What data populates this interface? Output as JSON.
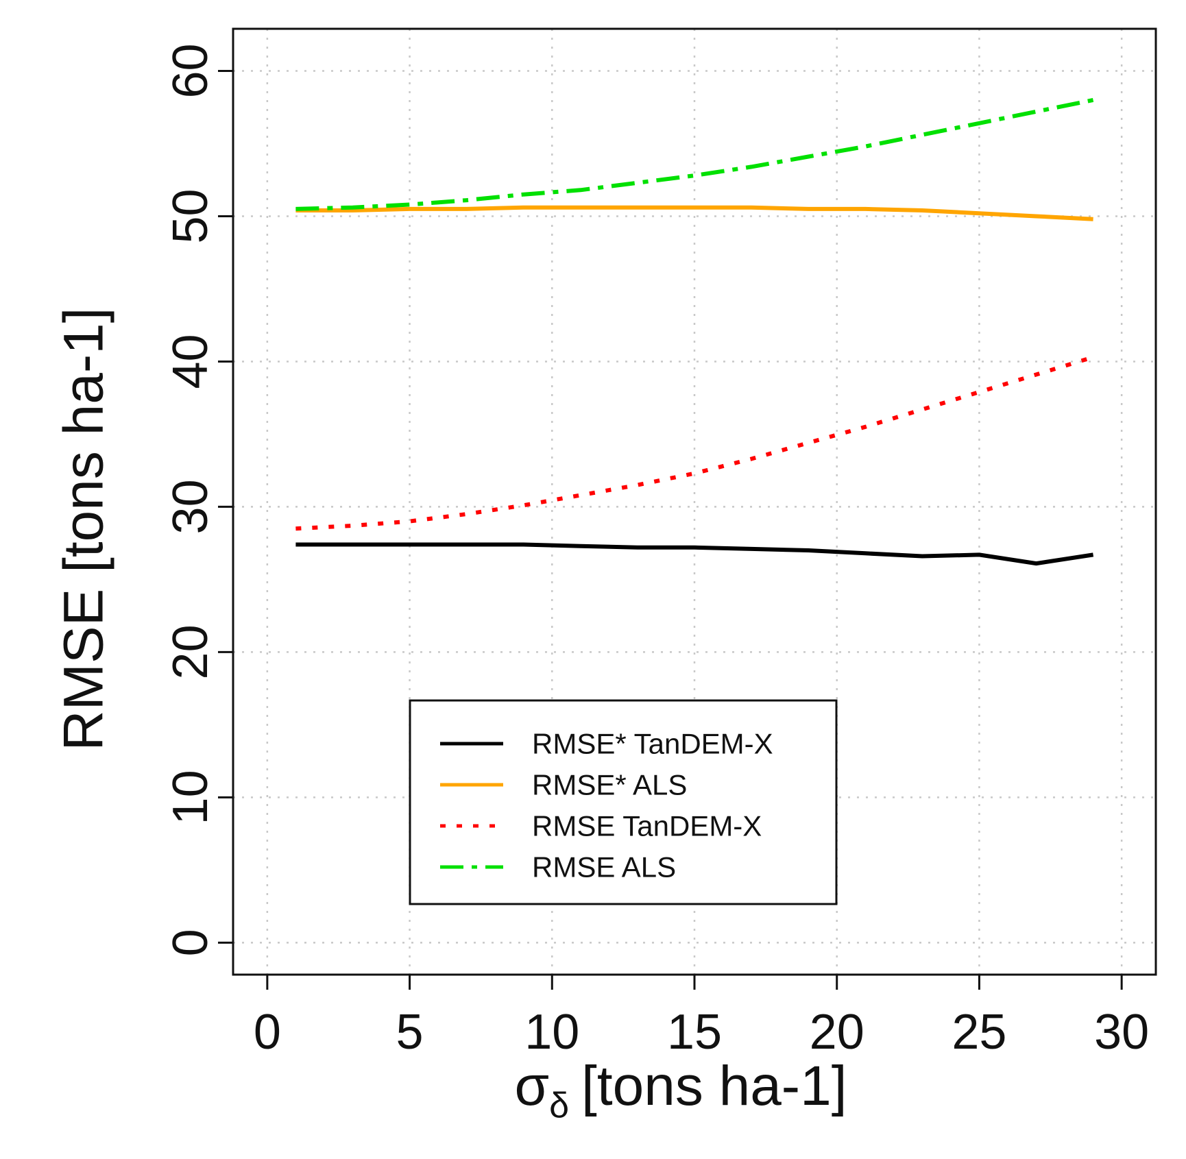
{
  "chart_data": {
    "type": "line",
    "xlabel_symbol": "σ",
    "xlabel_subscript": "δ",
    "xlabel_unit": "[tons ha-1]",
    "ylabel": "RMSE [tons ha-1]",
    "xlim": [
      -1.2,
      31.2
    ],
    "ylim": [
      -2.2,
      62.9
    ],
    "xticks": [
      0,
      5,
      10,
      15,
      20,
      25,
      30
    ],
    "yticks": [
      0,
      10,
      20,
      30,
      40,
      50,
      60
    ],
    "grid": true,
    "legend_position": "bottom-center",
    "series": [
      {
        "name": "RMSE* TanDEM-X",
        "color": "#000000",
        "dash": "solid",
        "x": [
          1,
          3,
          5,
          7,
          9,
          11,
          13,
          15,
          17,
          19,
          21,
          23,
          25,
          27,
          29
        ],
        "y": [
          27.4,
          27.4,
          27.4,
          27.4,
          27.4,
          27.3,
          27.2,
          27.2,
          27.1,
          27.0,
          26.8,
          26.6,
          26.7,
          26.1,
          26.7
        ]
      },
      {
        "name": "RMSE* ALS",
        "color": "#ffa500",
        "dash": "solid",
        "x": [
          1,
          3,
          5,
          7,
          9,
          11,
          13,
          15,
          17,
          19,
          21,
          23,
          25,
          27,
          29
        ],
        "y": [
          50.4,
          50.4,
          50.5,
          50.5,
          50.6,
          50.6,
          50.6,
          50.6,
          50.6,
          50.5,
          50.5,
          50.4,
          50.2,
          50.0,
          49.8
        ]
      },
      {
        "name": "RMSE TanDEM-X",
        "color": "#ff0000",
        "dash": "dotted",
        "x": [
          1,
          3,
          5,
          7,
          9,
          11,
          13,
          15,
          17,
          19,
          21,
          23,
          25,
          27,
          29
        ],
        "y": [
          28.5,
          28.7,
          29.0,
          29.5,
          30.1,
          30.8,
          31.5,
          32.3,
          33.3,
          34.4,
          35.5,
          36.7,
          37.9,
          39.1,
          40.3
        ]
      },
      {
        "name": "RMSE ALS",
        "color": "#00e000",
        "dash": "dashdot",
        "x": [
          1,
          3,
          5,
          7,
          9,
          11,
          13,
          15,
          17,
          19,
          21,
          23,
          25,
          27,
          29
        ],
        "y": [
          50.5,
          50.6,
          50.8,
          51.1,
          51.5,
          51.8,
          52.3,
          52.8,
          53.4,
          54.1,
          54.8,
          55.6,
          56.4,
          57.2,
          58.0
        ]
      }
    ]
  }
}
